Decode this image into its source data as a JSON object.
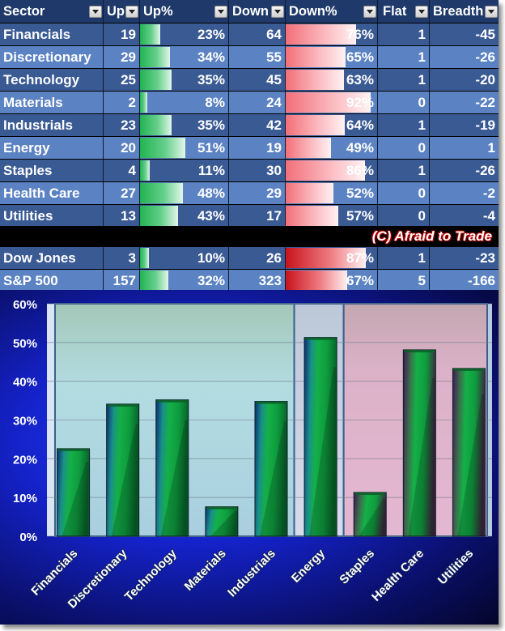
{
  "table": {
    "headers": [
      "Sector",
      "Up",
      "Up%",
      "Down",
      "Down%",
      "Flat",
      "Breadth"
    ],
    "rows": [
      {
        "sector": "Financials",
        "up": "19",
        "up_pct": "23%",
        "down": "64",
        "down_pct": "76%",
        "flat": "1",
        "breadth": "-45",
        "up_frac": 0.23,
        "down_frac": 0.76
      },
      {
        "sector": "Discretionary",
        "up": "29",
        "up_pct": "34%",
        "down": "55",
        "down_pct": "65%",
        "flat": "1",
        "breadth": "-26",
        "up_frac": 0.34,
        "down_frac": 0.65
      },
      {
        "sector": "Technology",
        "up": "25",
        "up_pct": "35%",
        "down": "45",
        "down_pct": "63%",
        "flat": "1",
        "breadth": "-20",
        "up_frac": 0.35,
        "down_frac": 0.63
      },
      {
        "sector": "Materials",
        "up": "2",
        "up_pct": "8%",
        "down": "24",
        "down_pct": "92%",
        "flat": "0",
        "breadth": "-22",
        "up_frac": 0.08,
        "down_frac": 0.92
      },
      {
        "sector": "Industrials",
        "up": "23",
        "up_pct": "35%",
        "down": "42",
        "down_pct": "64%",
        "flat": "1",
        "breadth": "-19",
        "up_frac": 0.35,
        "down_frac": 0.64
      },
      {
        "sector": "Energy",
        "up": "20",
        "up_pct": "51%",
        "down": "19",
        "down_pct": "49%",
        "flat": "0",
        "breadth": "1",
        "up_frac": 0.51,
        "down_frac": 0.49
      },
      {
        "sector": "Staples",
        "up": "4",
        "up_pct": "11%",
        "down": "30",
        "down_pct": "86%",
        "flat": "1",
        "breadth": "-26",
        "up_frac": 0.11,
        "down_frac": 0.86
      },
      {
        "sector": "Health Care",
        "up": "27",
        "up_pct": "48%",
        "down": "29",
        "down_pct": "52%",
        "flat": "0",
        "breadth": "-2",
        "up_frac": 0.48,
        "down_frac": 0.52
      },
      {
        "sector": "Utilities",
        "up": "13",
        "up_pct": "43%",
        "down": "17",
        "down_pct": "57%",
        "flat": "0",
        "breadth": "-4",
        "up_frac": 0.43,
        "down_frac": 0.57
      }
    ],
    "copyright": "(C) Afraid to Trade",
    "index_rows": [
      {
        "sector": "Dow Jones",
        "up": "3",
        "up_pct": "10%",
        "down": "26",
        "down_pct": "87%",
        "flat": "1",
        "breadth": "-23",
        "up_frac": 0.1,
        "down_frac": 0.87
      },
      {
        "sector": "S&P 500",
        "up": "157",
        "up_pct": "32%",
        "down": "323",
        "down_pct": "67%",
        "flat": "5",
        "breadth": "-166",
        "up_frac": 0.32,
        "down_frac": 0.67
      }
    ]
  },
  "colors": {
    "header_bg": "#1f3a6a",
    "row_dark": "#3a5a94",
    "row_light": "#5b82c2",
    "up_bar": "#22b352",
    "down_bar": "#f26f79",
    "index_down_bar": "#c8131c",
    "plot_group1_bg": "#b0d8de",
    "plot_group3_bg": "#dfb4cc"
  },
  "chart_data": {
    "type": "bar",
    "categories": [
      "Financials",
      "Discretionary",
      "Technology",
      "Materials",
      "Industrials",
      "Energy",
      "Staples",
      "Health Care",
      "Utilities"
    ],
    "values": [
      22.6,
      34.1,
      35.2,
      7.6,
      34.8,
      51.3,
      11.3,
      48.1,
      43.3
    ],
    "ylim": [
      0,
      60
    ],
    "yticks": [
      "0%",
      "10%",
      "20%",
      "30%",
      "40%",
      "50%",
      "60%"
    ],
    "groups": [
      {
        "members": [
          "Financials",
          "Discretionary",
          "Technology",
          "Materials",
          "Industrials"
        ],
        "color": "#b0d8de"
      },
      {
        "members": [
          "Energy"
        ],
        "color": "#c9d3e4"
      },
      {
        "members": [
          "Staples",
          "Health Care",
          "Utilities"
        ],
        "color": "#dfb4cc"
      }
    ],
    "grid": true,
    "title": "",
    "xlabel": "",
    "ylabel": ""
  }
}
